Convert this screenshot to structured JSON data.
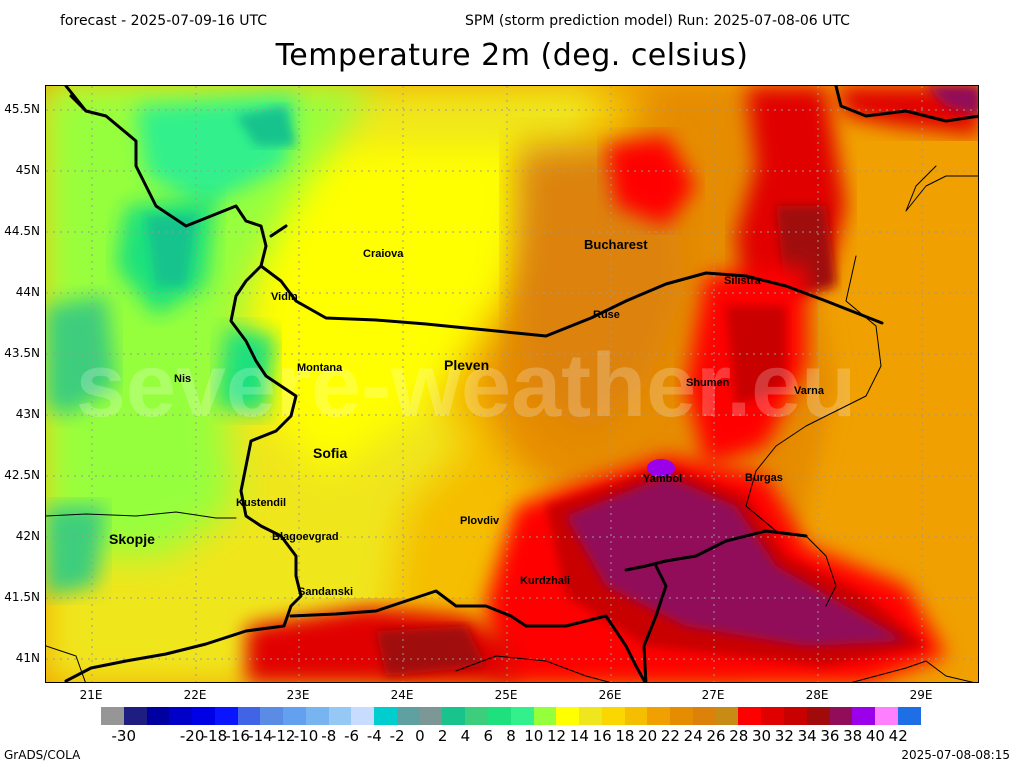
{
  "header": {
    "forecast": "forecast - 2025-07-09-16 UTC",
    "run": "SPM (storm prediction model) Run: 2025-07-08-06 UTC"
  },
  "title": "Temperature 2m (deg. celsius)",
  "map": {
    "lat_labels": [
      "45.5N",
      "45N",
      "44.5N",
      "44N",
      "43.5N",
      "43N",
      "42.5N",
      "42N",
      "41.5N",
      "41N"
    ],
    "lon_labels": [
      "21E",
      "22E",
      "23E",
      "24E",
      "25E",
      "26E",
      "27E",
      "28E",
      "29E"
    ],
    "watermark": "severe-weather.eu",
    "cities": [
      {
        "name": "Craiova"
      },
      {
        "name": "Bucharest"
      },
      {
        "name": "Vidin"
      },
      {
        "name": "Silistra"
      },
      {
        "name": "Ruse"
      },
      {
        "name": "Nis"
      },
      {
        "name": "Montana"
      },
      {
        "name": "Pleven"
      },
      {
        "name": "Shumen"
      },
      {
        "name": "Varna"
      },
      {
        "name": "Sofia"
      },
      {
        "name": "Yambol"
      },
      {
        "name": "Burgas"
      },
      {
        "name": "Kustendil"
      },
      {
        "name": "Plovdiv"
      },
      {
        "name": "Skopje"
      },
      {
        "name": "Blagoevgrad"
      },
      {
        "name": "Kurdzhali"
      },
      {
        "name": "Sandanski"
      }
    ]
  },
  "colorbar": {
    "colors": [
      "#969696",
      "#1e1e82",
      "#0000a0",
      "#0000c8",
      "#0000e6",
      "#0a14ff",
      "#4164e6",
      "#5a8ce6",
      "#64a0f0",
      "#78b4f0",
      "#96c8f5",
      "#c8dcff",
      "#00cdcd",
      "#5fa0a0",
      "#7d9696",
      "#19c38c",
      "#3ccd7d",
      "#1ee17d",
      "#32f08c",
      "#96ff3c",
      "#ffff00",
      "#f0e61e",
      "#fad700",
      "#f5be00",
      "#f0a000",
      "#e68c00",
      "#dc820a",
      "#c88c14",
      "#ff0000",
      "#e10000",
      "#c80000",
      "#a00a0a",
      "#910d5a",
      "#9b00eb",
      "#ff80ff",
      "#1e6ee6"
    ],
    "tick_labels": [
      "-30",
      "-20",
      "-18",
      "-16",
      "-14",
      "-12",
      "-10",
      "-8",
      "-6",
      "-4",
      "-2",
      "0",
      "2",
      "4",
      "6",
      "8",
      "10",
      "12",
      "14",
      "16",
      "18",
      "20",
      "22",
      "24",
      "26",
      "28",
      "30",
      "32",
      "34",
      "36",
      "38",
      "40",
      "42"
    ]
  },
  "footer": {
    "left": "GrADS/COLA",
    "right": "2025-07-08-08:15"
  }
}
